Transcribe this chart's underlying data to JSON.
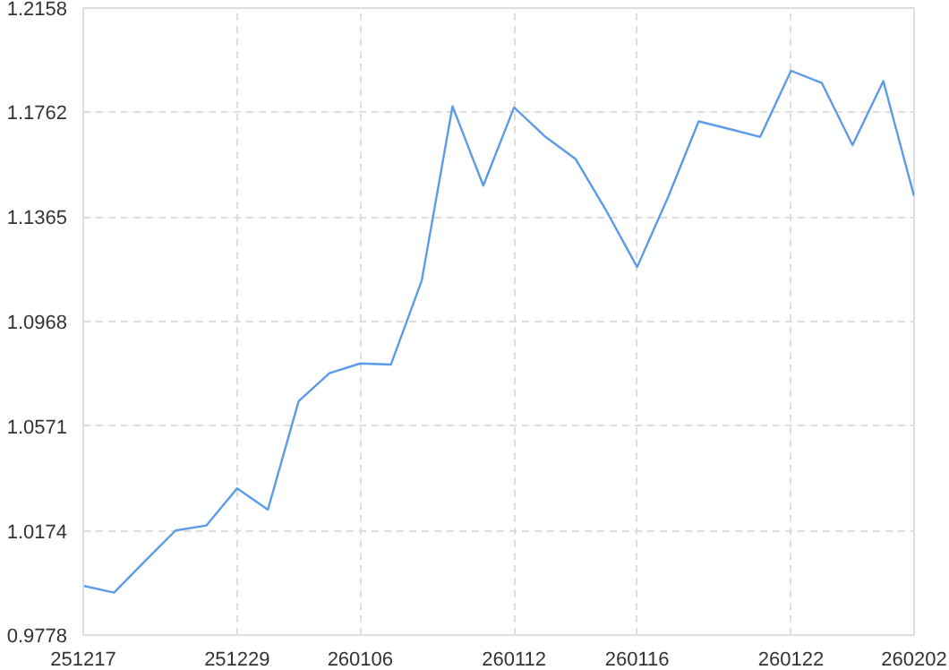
{
  "chart_data": {
    "type": "line",
    "categories": [
      "251217",
      null,
      null,
      null,
      null,
      "251229",
      null,
      null,
      null,
      "260106",
      null,
      null,
      null,
      null,
      "260112",
      null,
      null,
      null,
      "260116",
      null,
      null,
      null,
      null,
      "260122",
      null,
      null,
      null,
      "260202"
    ],
    "series": [
      {
        "color": "#5b9be8",
        "values": [
          0.9965,
          0.9939,
          1.0058,
          1.0175,
          1.0194,
          1.0335,
          1.0254,
          1.0666,
          1.0772,
          1.0809,
          1.0805,
          1.1124,
          1.1785,
          1.1484,
          1.1781,
          1.1671,
          1.1585,
          1.1388,
          1.1175,
          1.1439,
          1.1728,
          1.1699,
          1.1669,
          1.192,
          1.1874,
          1.1638,
          1.1881,
          1.1444
        ]
      }
    ],
    "ylim": [
      0.9778,
      1.2158
    ],
    "yticks": [
      0.9778,
      1.0174,
      1.0571,
      1.0968,
      1.1365,
      1.1762,
      1.2158
    ],
    "grid": true,
    "line_style": "solid"
  }
}
